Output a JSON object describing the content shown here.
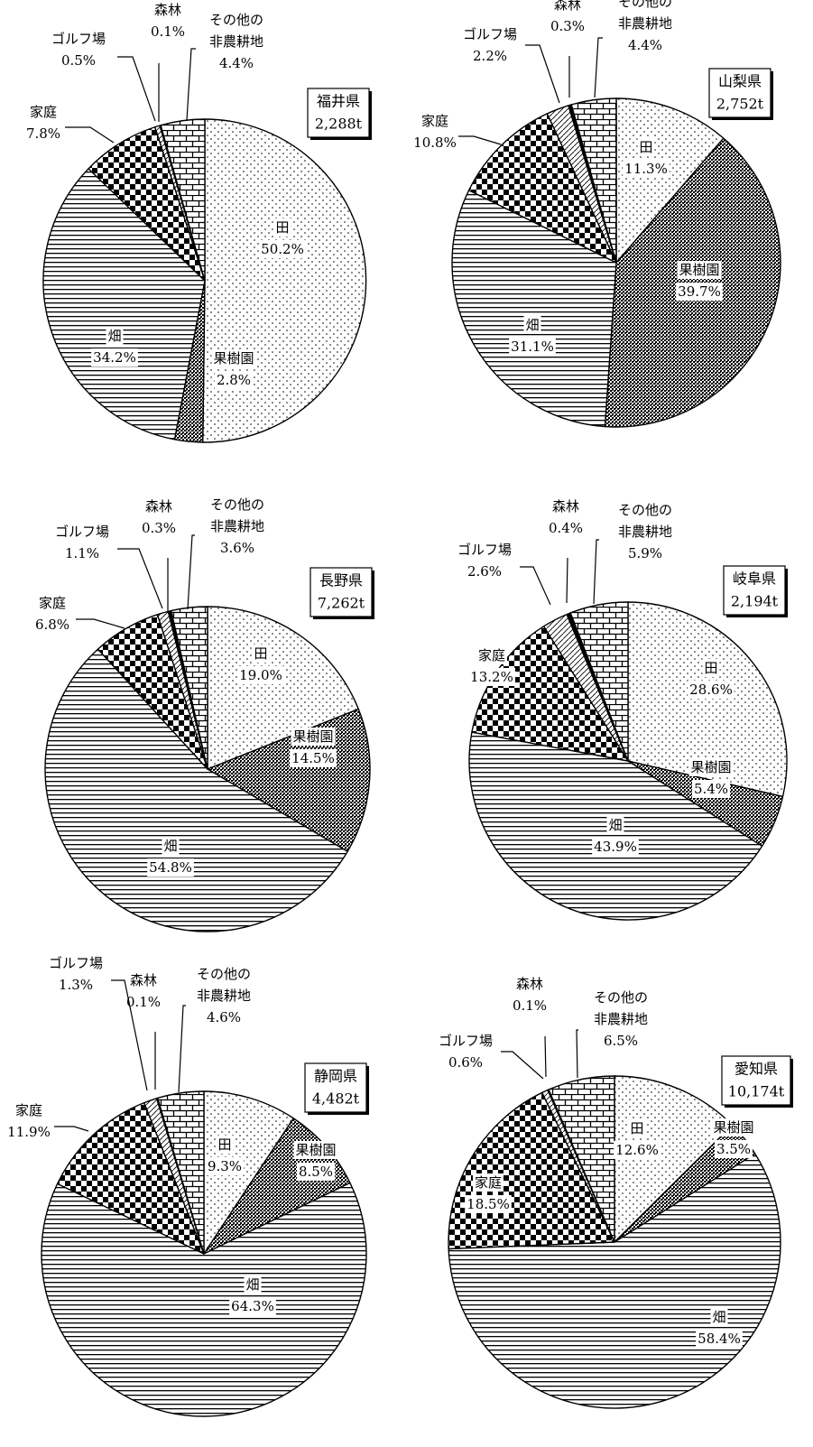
{
  "chart_data": [
    {
      "type": "pie",
      "title": "福井県",
      "total": "2,288t",
      "slices": [
        {
          "key": "ta",
          "name": "田",
          "value": 50.2,
          "label": "50.2%"
        },
        {
          "key": "kaju",
          "name": "果樹園",
          "value": 2.8,
          "label": "2.8%"
        },
        {
          "key": "hata",
          "name": "畑",
          "value": 34.2,
          "label": "34.2%"
        },
        {
          "key": "katei",
          "name": "家庭",
          "value": 7.8,
          "label": "7.8%"
        },
        {
          "key": "golf",
          "name": "ゴルフ場",
          "value": 0.5,
          "label": "0.5%"
        },
        {
          "key": "shinrin",
          "name": "森林",
          "value": 0.1,
          "label": "0.1%"
        },
        {
          "key": "sonota",
          "name": "その他の非農耕地",
          "name_lines": [
            "その他の",
            "非農耕地"
          ],
          "value": 4.4,
          "label": "4.4%"
        }
      ]
    },
    {
      "type": "pie",
      "title": "山梨県",
      "total": "2,752t",
      "slices": [
        {
          "key": "ta",
          "name": "田",
          "value": 11.3,
          "label": "11.3%"
        },
        {
          "key": "kaju",
          "name": "果樹園",
          "value": 39.7,
          "label": "39.7%"
        },
        {
          "key": "hata",
          "name": "畑",
          "value": 31.1,
          "label": "31.1%"
        },
        {
          "key": "katei",
          "name": "家庭",
          "value": 10.8,
          "label": "10.8%"
        },
        {
          "key": "golf",
          "name": "ゴルフ場",
          "value": 2.2,
          "label": "2.2%"
        },
        {
          "key": "shinrin",
          "name": "森林",
          "value": 0.3,
          "label": "0.3%"
        },
        {
          "key": "sonota",
          "name": "その他の非農耕地",
          "name_lines": [
            "その他の",
            "非農耕地"
          ],
          "value": 4.4,
          "label": "4.4%"
        }
      ]
    },
    {
      "type": "pie",
      "title": "長野県",
      "total": "7,262t",
      "slices": [
        {
          "key": "ta",
          "name": "田",
          "value": 19.0,
          "label": "19.0%"
        },
        {
          "key": "kaju",
          "name": "果樹園",
          "value": 14.5,
          "label": "14.5%"
        },
        {
          "key": "hata",
          "name": "畑",
          "value": 54.8,
          "label": "54.8%"
        },
        {
          "key": "katei",
          "name": "家庭",
          "value": 6.8,
          "label": "6.8%"
        },
        {
          "key": "golf",
          "name": "ゴルフ場",
          "value": 1.1,
          "label": "1.1%"
        },
        {
          "key": "shinrin",
          "name": "森林",
          "value": 0.3,
          "label": "0.3%"
        },
        {
          "key": "sonota",
          "name": "その他の非農耕地",
          "name_lines": [
            "その他の",
            "非農耕地"
          ],
          "value": 3.6,
          "label": "3.6%"
        }
      ]
    },
    {
      "type": "pie",
      "title": "岐阜県",
      "total": "2,194t",
      "slices": [
        {
          "key": "ta",
          "name": "田",
          "value": 28.6,
          "label": "28.6%"
        },
        {
          "key": "kaju",
          "name": "果樹園",
          "value": 5.4,
          "label": "5.4%"
        },
        {
          "key": "hata",
          "name": "畑",
          "value": 43.9,
          "label": "43.9%"
        },
        {
          "key": "katei",
          "name": "家庭",
          "value": 13.2,
          "label": "13.2%"
        },
        {
          "key": "golf",
          "name": "ゴルフ場",
          "value": 2.6,
          "label": "2.6%"
        },
        {
          "key": "shinrin",
          "name": "森林",
          "value": 0.4,
          "label": "0.4%"
        },
        {
          "key": "sonota",
          "name": "その他の非農耕地",
          "name_lines": [
            "その他の",
            "非農耕地"
          ],
          "value": 5.9,
          "label": "5.9%"
        }
      ]
    },
    {
      "type": "pie",
      "title": "静岡県",
      "total": "4,482t",
      "slices": [
        {
          "key": "ta",
          "name": "田",
          "value": 9.3,
          "label": "9.3%"
        },
        {
          "key": "kaju",
          "name": "果樹園",
          "value": 8.5,
          "label": "8.5%"
        },
        {
          "key": "hata",
          "name": "畑",
          "value": 64.3,
          "label": "64.3%"
        },
        {
          "key": "katei",
          "name": "家庭",
          "value": 11.9,
          "label": "11.9%"
        },
        {
          "key": "golf",
          "name": "ゴルフ場",
          "value": 1.3,
          "label": "1.3%"
        },
        {
          "key": "shinrin",
          "name": "森林",
          "value": 0.1,
          "label": "0.1%"
        },
        {
          "key": "sonota",
          "name": "その他の非農耕地",
          "name_lines": [
            "その他の",
            "非農耕地"
          ],
          "value": 4.6,
          "label": "4.6%"
        }
      ]
    },
    {
      "type": "pie",
      "title": "愛知県",
      "total": "10,174t",
      "slices": [
        {
          "key": "ta",
          "name": "田",
          "value": 12.6,
          "label": "12.6%"
        },
        {
          "key": "kaju",
          "name": "果樹園",
          "value": 3.5,
          "label": "3.5%"
        },
        {
          "key": "hata",
          "name": "畑",
          "value": 58.4,
          "label": "58.4%"
        },
        {
          "key": "katei",
          "name": "家庭",
          "value": 18.5,
          "label": "18.5%"
        },
        {
          "key": "golf",
          "name": "ゴルフ場",
          "value": 0.6,
          "label": "0.6%"
        },
        {
          "key": "shinrin",
          "name": "森林",
          "value": 0.1,
          "label": "0.1%"
        },
        {
          "key": "sonota",
          "name": "その他の非農耕地",
          "name_lines": [
            "その他の",
            "非農耕地"
          ],
          "value": 6.5,
          "label": "6.5%"
        }
      ]
    }
  ]
}
